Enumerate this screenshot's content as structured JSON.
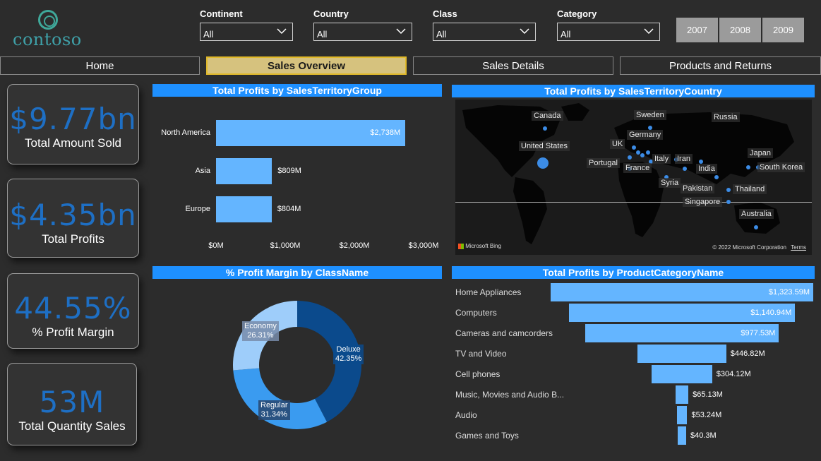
{
  "logo": {
    "text": "contoso"
  },
  "filters": [
    {
      "label": "Continent",
      "value": "All"
    },
    {
      "label": "Country",
      "value": "All"
    },
    {
      "label": "Class",
      "value": "All"
    },
    {
      "label": "Category",
      "value": "All"
    }
  ],
  "years": [
    "2007",
    "2008",
    "2009"
  ],
  "nav": [
    "Home",
    "Sales Overview",
    "Sales Details",
    "Products and Returns"
  ],
  "kpis": [
    {
      "value": "$9.77bn",
      "caption": "Total Amount Sold"
    },
    {
      "value": "$4.35bn",
      "caption": "Total Profits"
    },
    {
      "value": "44.55%",
      "caption": "% Profit Margin"
    },
    {
      "value": "53M",
      "caption": "Total Quantity Sales"
    }
  ],
  "panels": {
    "territory_group": "Total Profits by SalesTerritoryGroup",
    "territory_country": "Total Profits by SalesTerritoryCountry",
    "class_margin": "% Profit Margin by ClassName",
    "category": "Total Profits by ProductCategoryName"
  },
  "map": {
    "cities": [
      "Canada",
      "Sweden",
      "Russia",
      "Germany",
      "UK",
      "United States",
      "Italy",
      "Iran",
      "Japan",
      "Portugal",
      "France",
      "India",
      "South Korea",
      "Syria",
      "Pakistan",
      "Thailand",
      "Singapore",
      "Australia"
    ],
    "bing": "Microsoft Bing",
    "copyright": "© 2022 Microsoft Corporation",
    "terms": "Terms"
  },
  "chart_data": [
    {
      "type": "bar",
      "orientation": "horizontal",
      "categories": [
        "North America",
        "Asia",
        "Europe"
      ],
      "values": [
        2738,
        809,
        804
      ],
      "value_labels": [
        "$2,738M",
        "$809M",
        "$804M"
      ],
      "xlim": [
        0,
        3000
      ],
      "x_ticks": [
        "$0M",
        "$1,000M",
        "$2,000M",
        "$3,000M"
      ],
      "color": "#64b5ff"
    },
    {
      "type": "pie",
      "donut": true,
      "categories": [
        "Deluxe",
        "Regular",
        "Economy"
      ],
      "values": [
        42.35,
        31.34,
        26.31
      ],
      "value_labels": [
        "42.35%",
        "31.34%",
        "26.31%"
      ],
      "colors": [
        "#0b4a8c",
        "#3a9bf0",
        "#9ecdfa"
      ]
    },
    {
      "type": "bar",
      "orientation": "horizontal-funnel",
      "categories": [
        "Home Appliances",
        "Computers",
        "Cameras and camcorders",
        "TV and Video",
        "Cell phones",
        "Music, Movies and Audio B...",
        "Audio",
        "Games and Toys"
      ],
      "values": [
        1323.59,
        1140.94,
        977.53,
        446.82,
        304.12,
        65.13,
        53.24,
        40.3
      ],
      "value_labels": [
        "$1,323.59M",
        "$1,140.94M",
        "$977.53M",
        "$446.82M",
        "$304.12M",
        "$65.13M",
        "$53.24M",
        "$40.3M"
      ],
      "color": "#64b5ff"
    }
  ]
}
